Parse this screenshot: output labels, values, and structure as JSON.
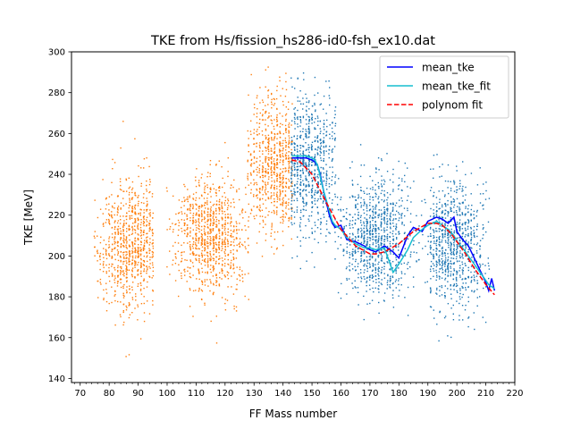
{
  "chart_data": {
    "type": "scatter",
    "title": "TKE from  Hs/fission_hs286-id0-fsh_ex10.dat",
    "xlabel": "FF Mass number",
    "ylabel": "TKE [MeV]",
    "xlim": [
      67,
      220
    ],
    "ylim": [
      138,
      300
    ],
    "x_major_ticks": [
      70,
      80,
      90,
      100,
      110,
      120,
      130,
      140,
      150,
      160,
      170,
      180,
      190,
      200,
      210,
      220
    ],
    "x_tick_labels": [
      "70",
      "80",
      "90",
      "100",
      "110",
      "120",
      "130",
      "140",
      "150",
      "160",
      "170",
      "180",
      "190",
      "200",
      "210",
      "220"
    ],
    "y_major_ticks": [
      140,
      160,
      180,
      200,
      220,
      240,
      260,
      280,
      300
    ],
    "y_tick_labels": [
      "140",
      "160",
      "180",
      "200",
      "220",
      "240",
      "260",
      "280",
      "300"
    ],
    "x_minor_tick_step": 2,
    "grid": false,
    "legend_position": "top-right",
    "scatter_clusters": [
      {
        "side": "light",
        "color": "#ff7f0e",
        "a_min": 75,
        "a_max": 143,
        "bands": [
          {
            "a": [
              75,
              95
            ],
            "center": 88,
            "tke_mean": 205,
            "tke_sd": 16
          },
          {
            "a": [
              100,
              128
            ],
            "center": 115,
            "tke_mean": 210,
            "tke_sd": 14
          },
          {
            "a": [
              128,
              143
            ],
            "center": 138,
            "tke_mean": 245,
            "tke_sd": 17
          }
        ]
      },
      {
        "side": "heavy",
        "color": "#1f77b4",
        "a_min": 143,
        "a_max": 213,
        "bands": [
          {
            "a": [
              143,
              158
            ],
            "center": 148,
            "tke_mean": 245,
            "tke_sd": 17
          },
          {
            "a": [
              158,
              190
            ],
            "center": 172,
            "tke_mean": 210,
            "tke_sd": 14
          },
          {
            "a": [
              191,
              211
            ],
            "center": 198,
            "tke_mean": 205,
            "tke_sd": 16
          }
        ]
      }
    ],
    "series": [
      {
        "name": "mean_tke",
        "color": "#0000ff",
        "style": "solid",
        "x": [
          143,
          145,
          148,
          150,
          151,
          152,
          153,
          154,
          155,
          156,
          157,
          158,
          160,
          162,
          165,
          168,
          170,
          172,
          175,
          178,
          180,
          183,
          185,
          188,
          190,
          193,
          195,
          197,
          199,
          200,
          202,
          204,
          206,
          208,
          210,
          211,
          212,
          213
        ],
        "y": [
          248,
          248,
          248,
          247,
          246,
          244,
          239,
          232,
          226,
          220,
          216,
          214,
          215,
          208,
          207,
          205,
          203,
          202,
          205,
          202,
          199,
          210,
          214,
          212,
          217,
          219,
          218,
          216,
          219,
          212,
          208,
          205,
          199,
          193,
          187,
          183,
          189,
          183
        ]
      },
      {
        "name": "mean_tke_fit",
        "color": "#17becf",
        "style": "solid",
        "x": [
          143,
          145,
          148,
          150,
          151,
          152,
          153,
          154,
          155,
          156,
          157,
          158,
          160,
          162,
          165,
          168,
          170,
          172,
          175,
          178,
          180,
          183,
          185,
          188,
          190,
          193,
          195,
          197,
          199,
          200,
          202,
          204,
          206,
          208,
          210,
          211,
          212,
          213
        ],
        "y": [
          249,
          249,
          249,
          248,
          247,
          244,
          238,
          232,
          227,
          222,
          217,
          215,
          213,
          209,
          206,
          204,
          204,
          203,
          204,
          192,
          196,
          203,
          209,
          213,
          215,
          217,
          215,
          213,
          210,
          207,
          204,
          200,
          196,
          192,
          188,
          186,
          185,
          184
        ]
      },
      {
        "name": "polynom fit",
        "color": "#ff0000",
        "style": "dashed",
        "x": [
          143,
          146,
          150,
          155,
          160,
          165,
          170,
          172,
          175,
          180,
          185,
          190,
          193,
          195,
          198,
          200,
          203,
          206,
          210,
          213
        ],
        "y": [
          247,
          246,
          240,
          226,
          213,
          205,
          201,
          201,
          202,
          206,
          212,
          216,
          216,
          215,
          211,
          207,
          201,
          194,
          186,
          181
        ]
      }
    ]
  }
}
